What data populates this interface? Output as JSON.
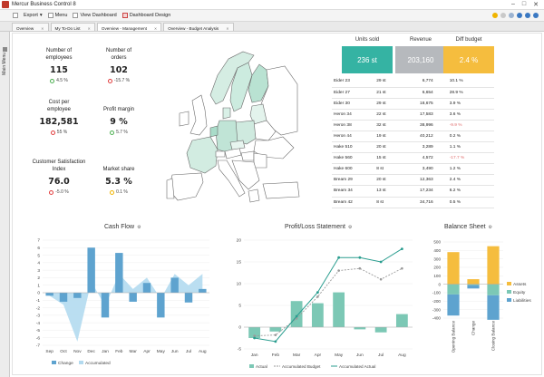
{
  "app": {
    "title": "Mercur Business Control 8"
  },
  "menubar": {
    "export": "Export",
    "menu": "Menu",
    "view_dashboard": "View Dashboard",
    "dashboard_design": "Dashboard Design"
  },
  "tabs": [
    {
      "label": "Overview"
    },
    {
      "label": "My To-Do List"
    },
    {
      "label": "Overview - Management"
    },
    {
      "label": "Overview - Budget Analysis"
    }
  ],
  "sidebar": {
    "label": "Main Menu"
  },
  "kpis": [
    {
      "title": "Number of employees",
      "value": "115",
      "change": "4.5 %",
      "status": "up"
    },
    {
      "title": "Number of orders",
      "value": "102",
      "change": "-15.7 %",
      "status": "down"
    },
    {
      "title": "Cost per employee",
      "value": "182,581",
      "change": "55 %",
      "status": "down"
    },
    {
      "title": "Profit margin",
      "value": "9 %",
      "change": "5.7 %",
      "status": "up"
    },
    {
      "title": "Customer Satisfaction Index",
      "value": "76.0",
      "change": "-5.0 %",
      "status": "down"
    },
    {
      "title": "Market share",
      "value": "5.3 %",
      "change": "0.1 %",
      "status": "warn"
    }
  ],
  "summary": {
    "units_label": "Units sold",
    "units_value": "236 st",
    "units_color": "#35b3a3",
    "revenue_label": "Revenue",
    "revenue_value": "203,160",
    "revenue_color": "#b6b9bd",
    "diff_label": "Diff budget",
    "diff_value": "2.4 %",
    "diff_color": "#f5bd3e"
  },
  "products": [
    {
      "name": "Eider 23",
      "units": "29 st",
      "revenue": "6,774",
      "diff": "10.1 %",
      "neg": false
    },
    {
      "name": "Eider 27",
      "units": "21 st",
      "revenue": "6,654",
      "diff": "28.9 %",
      "neg": false
    },
    {
      "name": "Eider 30",
      "units": "29 st",
      "revenue": "18,675",
      "diff": "3.9 %",
      "neg": false
    },
    {
      "name": "Heron 34",
      "units": "22 st",
      "revenue": "17,583",
      "diff": "3.6 %",
      "neg": false
    },
    {
      "name": "Heron 38",
      "units": "32 st",
      "revenue": "38,996",
      "diff": "-9.9 %",
      "neg": true
    },
    {
      "name": "Heron 44",
      "units": "19 st",
      "revenue": "40,212",
      "diff": "0.2 %",
      "neg": false
    },
    {
      "name": "Hake 510",
      "units": "20 st",
      "revenue": "3,289",
      "diff": "1.1 %",
      "neg": false
    },
    {
      "name": "Hake 560",
      "units": "15 st",
      "revenue": "4,572",
      "diff": "-17.7 %",
      "neg": true
    },
    {
      "name": "Hake 600",
      "units": "8 st",
      "revenue": "3,490",
      "diff": "1.2 %",
      "neg": false
    },
    {
      "name": "Bream 29",
      "units": "20 st",
      "revenue": "12,363",
      "diff": "2.4 %",
      "neg": false
    },
    {
      "name": "Bream 34",
      "units": "13 st",
      "revenue": "17,234",
      "diff": "6.2 %",
      "neg": false
    },
    {
      "name": "Bream 42",
      "units": "8 st",
      "revenue": "34,716",
      "diff": "0.5 %",
      "neg": false
    }
  ],
  "chart_data": [
    {
      "type": "bar",
      "title": "Cash Flow",
      "categories": [
        "Sep",
        "Oct",
        "Nov",
        "Dec",
        "Jan",
        "Feb",
        "Mar",
        "Apr",
        "May",
        "Jun",
        "Jul",
        "Aug"
      ],
      "ylim": [
        -7,
        7
      ],
      "yticks": [
        7,
        6,
        5,
        4,
        3,
        2,
        1,
        0,
        -1,
        -2,
        -3,
        -4,
        -5,
        -6,
        -7
      ],
      "series": [
        {
          "name": "Change",
          "kind": "bar",
          "color": "#5ea3cf",
          "values": [
            -0.4,
            -1.2,
            -0.7,
            6.0,
            -3.3,
            5.3,
            -1.2,
            1.3,
            -3.3,
            2.0,
            -1.3,
            0.5
          ]
        },
        {
          "name": "Accumulated",
          "kind": "area",
          "color": "#b3daef",
          "values": [
            -0.4,
            -1.6,
            -6.5,
            1.5,
            -1.8,
            2.5,
            0.5,
            2.0,
            -0.8,
            2.5,
            1.0,
            2.5
          ]
        }
      ]
    },
    {
      "type": "line",
      "title": "Profit/Loss Statement",
      "categories": [
        "Jan",
        "Feb",
        "Mar",
        "Apr",
        "May",
        "Jun",
        "Jul",
        "Aug"
      ],
      "ylim": [
        -5,
        20
      ],
      "yticks": [
        20,
        15,
        10,
        5,
        0,
        -5
      ],
      "series": [
        {
          "name": "Actual",
          "kind": "bar",
          "color": "#7cc8b5",
          "values": [
            -2.5,
            -1.0,
            6.0,
            5.5,
            8.0,
            -0.5,
            -1.2,
            3.0
          ]
        },
        {
          "name": "Accumulated Budget",
          "kind": "line",
          "color": "#9a9a9a",
          "values": [
            -2.0,
            -1.8,
            2.0,
            7.0,
            13.0,
            13.5,
            11.0,
            13.5
          ]
        },
        {
          "name": "Accumulated Actual",
          "kind": "line",
          "color": "#2a9d8f",
          "values": [
            -2.5,
            -3.3,
            2.5,
            8.0,
            16.0,
            16.0,
            15.0,
            18.0
          ]
        }
      ]
    },
    {
      "type": "bar",
      "title": "Balance Sheet",
      "categories": [
        "Opening Balance",
        "Change",
        "Closing Balance"
      ],
      "ylim": [
        -400,
        500
      ],
      "yticks": [
        500,
        400,
        300,
        200,
        100,
        0,
        -100,
        -200,
        -300,
        -400
      ],
      "series": [
        {
          "name": "Assets",
          "color": "#f5bd3e",
          "values": [
            380,
            60,
            450
          ]
        },
        {
          "name": "Equity",
          "color": "#7cc8b5",
          "values": [
            -120,
            -10,
            -130
          ]
        },
        {
          "name": "Liabilities",
          "color": "#5ea3cf",
          "values": [
            -250,
            -40,
            -290
          ]
        }
      ]
    }
  ]
}
